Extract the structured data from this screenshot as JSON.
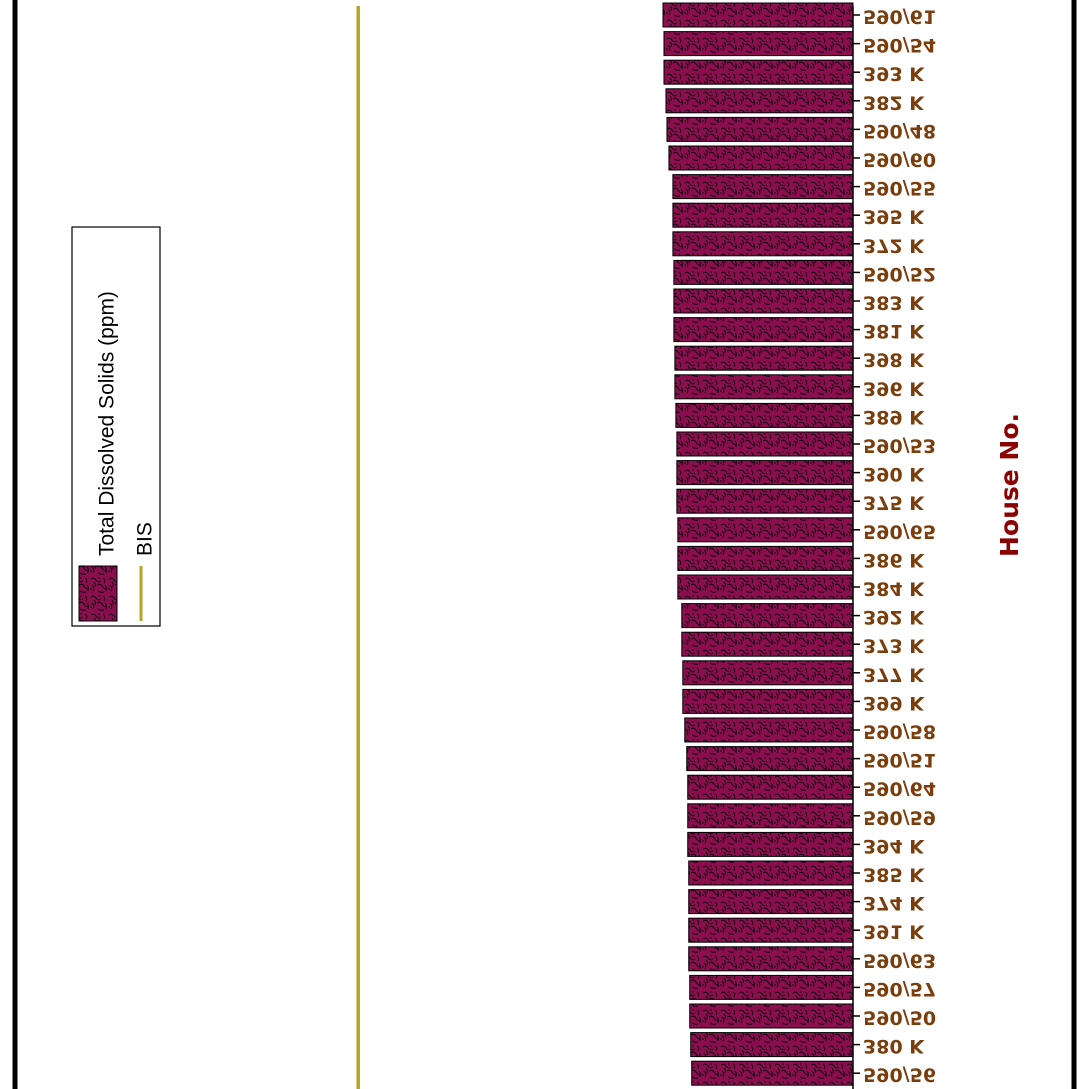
{
  "chart_data": {
    "type": "bar",
    "orientation": "horizontal",
    "categories": [
      "590/61",
      "590/54",
      "393 K",
      "382 K",
      "590/48",
      "590/60",
      "590/55",
      "395 K",
      "372 K",
      "590/52",
      "383 K",
      "381 K",
      "398 K",
      "396 K",
      "389 K",
      "590/53",
      "390 K",
      "375 K",
      "590/65",
      "386 K",
      "384 K",
      "392 K",
      "373 K",
      "377 K",
      "399 K",
      "590/58",
      "590/51",
      "590/64",
      "590/59",
      "394 K",
      "385 K",
      "374 K",
      "391 K",
      "590/63",
      "590/57",
      "590/50",
      "380 K",
      "590/56"
    ],
    "series": [
      {
        "name": "Total Dissolved Solids (ppm)",
        "type": "bar",
        "color": "#8b0f4f",
        "values": [
          192,
          191,
          191,
          189,
          188,
          186,
          182,
          182,
          182,
          181,
          181,
          181,
          180,
          180,
          179,
          178,
          178,
          178,
          177,
          177,
          177,
          173,
          173,
          172,
          172,
          170,
          168,
          167,
          167,
          167,
          166,
          166,
          166,
          166,
          165,
          165,
          164,
          163
        ]
      },
      {
        "name": "BIS",
        "type": "line",
        "color": "#b3a624",
        "value": 500
      }
    ],
    "xlabel": "",
    "ylabel": "House No.",
    "xlim": [
      0,
      800
    ],
    "legend": "left"
  },
  "colors": {
    "bar_fill": "#8b0f4f",
    "bis_line": "#b3a624",
    "label_color": "#7a3d0c",
    "axis_title_color": "#8b0000",
    "frame": "#000000"
  }
}
